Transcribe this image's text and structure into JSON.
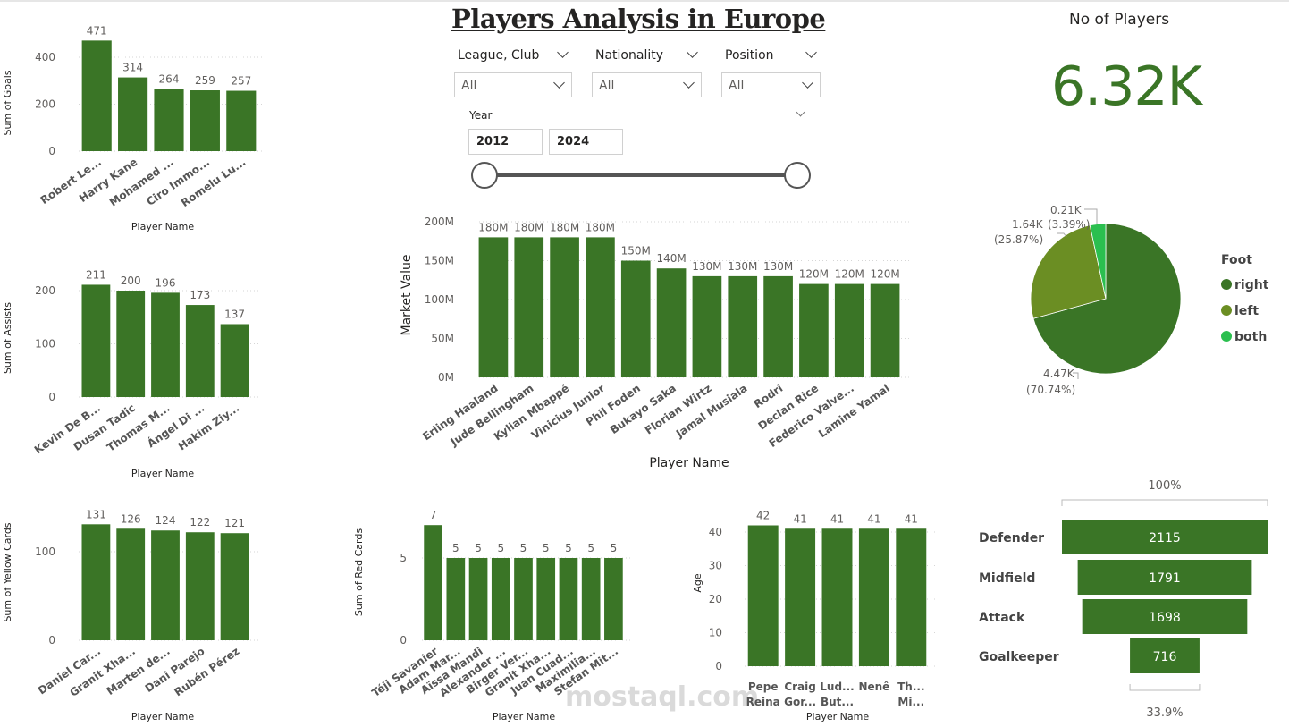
{
  "title": "Players Analysis in Europe",
  "filters": [
    {
      "label": "League, Club",
      "value": "All"
    },
    {
      "label": "Nationality",
      "value": "All"
    },
    {
      "label": "Position",
      "value": "All"
    }
  ],
  "year_slider": {
    "label": "Year",
    "from": "2012",
    "to": "2024",
    "min": 2012,
    "max": 2024
  },
  "kpi": {
    "label": "No of Players",
    "value": "6.32K"
  },
  "colors": {
    "bar": "#3a7526",
    "right": "#3a7526",
    "left": "#6b8e23",
    "both": "#2bbf4f"
  },
  "watermark": "mostaql.com",
  "chart_data": [
    {
      "id": "goals",
      "type": "bar",
      "ylabel": "Sum of Goals",
      "xlabel": "Player Name",
      "categories": [
        "Robert Le...",
        "Harry Kane",
        "Mohamed ...",
        "Ciro Immo...",
        "Romelu Lu..."
      ],
      "values": [
        471,
        314,
        264,
        259,
        257
      ],
      "labels": [
        "471",
        "314",
        "264",
        "259",
        "257"
      ],
      "ticks": [
        0,
        200,
        400
      ],
      "tick_labels": [
        "0",
        "200",
        "400"
      ]
    },
    {
      "id": "assists",
      "type": "bar",
      "ylabel": "Sum of Assists",
      "xlabel": "Player Name",
      "categories": [
        "Kevin De B...",
        "Dusan Tadic",
        "Thomas M...",
        "Ángel Di ...",
        "Hakim Ziy..."
      ],
      "values": [
        211,
        200,
        196,
        173,
        137
      ],
      "labels": [
        "211",
        "200",
        "196",
        "173",
        "137"
      ],
      "ticks": [
        0,
        100,
        200
      ],
      "tick_labels": [
        "0",
        "100",
        "200"
      ]
    },
    {
      "id": "yellow",
      "type": "bar",
      "ylabel": "Sum of Yellow Cards",
      "xlabel": "Player Name",
      "categories": [
        "Daniel Car...",
        "Granit Xha...",
        "Marten de...",
        "Dani Parejo",
        "Rubén Pérez"
      ],
      "values": [
        131,
        126,
        124,
        122,
        121
      ],
      "labels": [
        "131",
        "126",
        "124",
        "122",
        "121"
      ],
      "ticks": [
        0,
        100
      ],
      "tick_labels": [
        "0",
        "100"
      ]
    },
    {
      "id": "red",
      "type": "bar",
      "ylabel": "Sum of Red Cards",
      "xlabel": "Player Name",
      "categories": [
        "Téji Savanier",
        "Adam Mar...",
        "Aïssa Mandi",
        "Alexander ...",
        "Birger Ver...",
        "Granit Xha...",
        "Juan Cuad...",
        "Maximilia...",
        "Stefan Mit..."
      ],
      "values": [
        7,
        5,
        5,
        5,
        5,
        5,
        5,
        5,
        5
      ],
      "labels": [
        "7",
        "5",
        "5",
        "5",
        "5",
        "5",
        "5",
        "5",
        "5"
      ],
      "ticks": [
        0,
        5
      ],
      "tick_labels": [
        "0",
        "5"
      ]
    },
    {
      "id": "age",
      "type": "bar",
      "ylabel": "Age",
      "xlabel": "Player Name",
      "categories": [
        "Pepe|Reina",
        "Craig|Gor...",
        "Lud...|But...",
        "Nenê",
        "Th...|Mi..."
      ],
      "values": [
        42,
        41,
        41,
        41,
        41
      ],
      "labels": [
        "42",
        "41",
        "41",
        "41",
        "41"
      ],
      "ticks": [
        0,
        10,
        20,
        30,
        40
      ],
      "tick_labels": [
        "0",
        "10",
        "20",
        "30",
        "40"
      ]
    },
    {
      "id": "market",
      "type": "bar",
      "ylabel": "Market Value",
      "xlabel": "Player Name",
      "categories": [
        "Erling Haaland",
        "Jude Bellingham",
        "Kylian Mbappé",
        "Vinicius Junior",
        "Phil Foden",
        "Bukayo Saka",
        "Florian Wirtz",
        "Jamal Musiala",
        "Rodri",
        "Declan Rice",
        "Federico Valve...",
        "Lamine Yamal"
      ],
      "values": [
        180,
        180,
        180,
        180,
        150,
        140,
        130,
        130,
        130,
        120,
        120,
        120
      ],
      "labels": [
        "180M",
        "180M",
        "180M",
        "180M",
        "150M",
        "140M",
        "130M",
        "130M",
        "130M",
        "120M",
        "120M",
        "120M"
      ],
      "ticks": [
        0,
        50,
        100,
        150,
        200
      ],
      "tick_labels": [
        "0M",
        "50M",
        "100M",
        "150M",
        "200M"
      ],
      "unit": "M"
    },
    {
      "id": "foot",
      "type": "pie",
      "legend_title": "Foot",
      "slices": [
        {
          "name": "right",
          "value": 4.47,
          "percent": 70.74,
          "label": "4.47K",
          "pct_label": "(70.74%)"
        },
        {
          "name": "left",
          "value": 1.64,
          "percent": 25.87,
          "label": "1.64K",
          "pct_label": "(25.87%)"
        },
        {
          "name": "both",
          "value": 0.21,
          "percent": 3.39,
          "label": "0.21K",
          "pct_label": "(3.39%)"
        }
      ]
    },
    {
      "id": "position",
      "type": "funnel",
      "top_label": "100%",
      "bottom_label": "33.9%",
      "categories": [
        "Defender",
        "Midfield",
        "Attack",
        "Goalkeeper"
      ],
      "values": [
        2115,
        1791,
        1698,
        716
      ],
      "labels": [
        "2115",
        "1791",
        "1698",
        "716"
      ]
    }
  ]
}
